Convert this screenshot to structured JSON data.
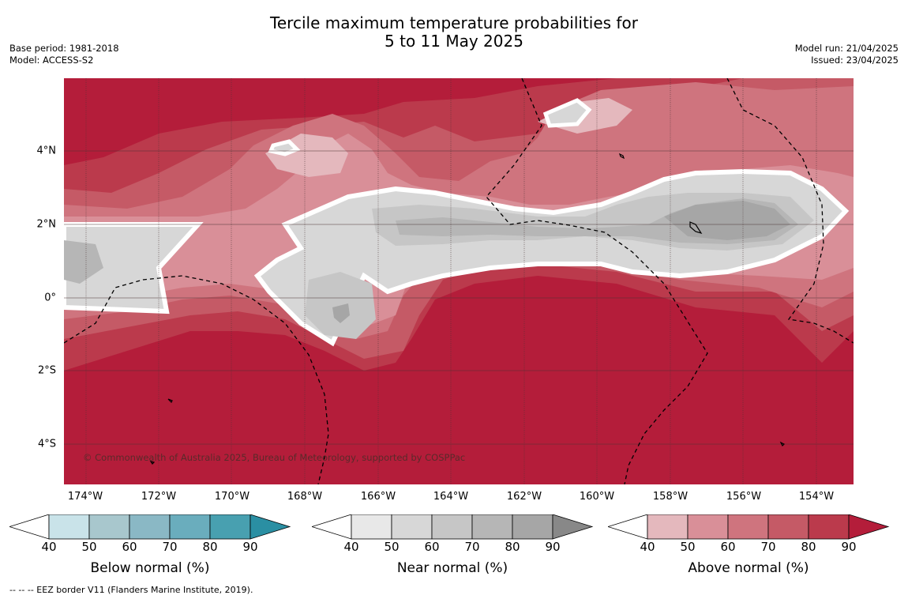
{
  "title_line1": "Tercile maximum temperature probabilities for",
  "title_line2": "5 to 11 May 2025",
  "meta_left": {
    "base_period": "Base period: 1981-2018",
    "model": "Model: ACCESS-S2"
  },
  "meta_right": {
    "model_run": "Model run: 21/04/2025",
    "issued": "Issued: 23/04/2025"
  },
  "map": {
    "lon_labels": [
      "174°W",
      "172°W",
      "170°W",
      "168°W",
      "166°W",
      "164°W",
      "162°W",
      "160°W",
      "158°W",
      "156°W",
      "154°W"
    ],
    "lat_labels": [
      "4°N",
      "2°N",
      "0°",
      "2°S",
      "4°S"
    ],
    "copyright": "© Commonwealth of Australia 2025, Bureau of Meteorology, supported by COSPPac",
    "colors": {
      "above": [
        "#e4b8bd",
        "#d98f98",
        "#cf747e",
        "#c55a66",
        "#bb3a4c",
        "#b41d3a"
      ],
      "near": [
        "#e8e8e8",
        "#d7d7d7",
        "#c6c6c6",
        "#b6b6b6",
        "#a6a6a6",
        "#888888"
      ],
      "below": [
        "#c9e3e9",
        "#a8c7cd",
        "#8ab8c5",
        "#6aadbd",
        "#48a0b0",
        "#2a8fa3"
      ]
    }
  },
  "colorbars": [
    {
      "id": "below",
      "title": "Below normal (%)",
      "ticks": [
        "40",
        "50",
        "60",
        "70",
        "80",
        "90"
      ]
    },
    {
      "id": "near",
      "title": "Near normal (%)",
      "ticks": [
        "40",
        "50",
        "60",
        "70",
        "80",
        "90"
      ]
    },
    {
      "id": "above",
      "title": "Above normal (%)",
      "ticks": [
        "40",
        "50",
        "60",
        "70",
        "80",
        "90"
      ]
    }
  ],
  "footnote": "--  --  -- EEZ border V11 (Flanders Marine Institute, 2019)."
}
